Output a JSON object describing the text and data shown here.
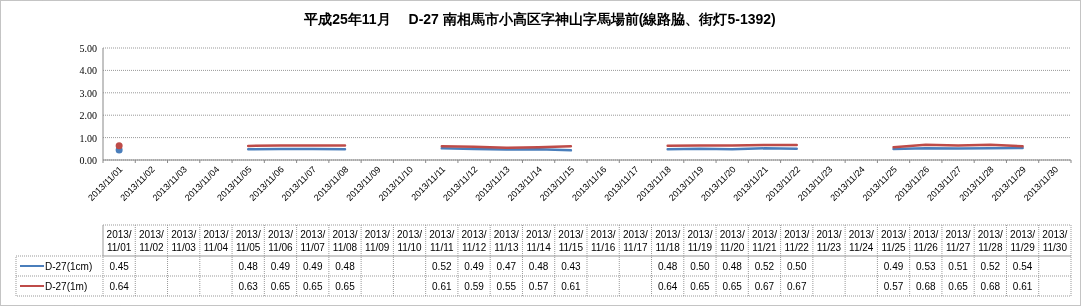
{
  "chart_data": {
    "type": "line",
    "title": "平成25年11月　 D-27 南相馬市小高区字神山字馬場前(線路脇、街灯5-1392)",
    "categories": [
      "2013/11/01",
      "2013/11/02",
      "2013/11/03",
      "2013/11/04",
      "2013/11/05",
      "2013/11/06",
      "2013/11/07",
      "2013/11/08",
      "2013/11/09",
      "2013/11/10",
      "2013/11/11",
      "2013/11/12",
      "2013/11/13",
      "2013/11/14",
      "2013/11/15",
      "2013/11/16",
      "2013/11/17",
      "2013/11/18",
      "2013/11/19",
      "2013/11/20",
      "2013/11/21",
      "2013/11/22",
      "2013/11/23",
      "2013/11/24",
      "2013/11/25",
      "2013/11/26",
      "2013/11/27",
      "2013/11/28",
      "2013/11/29",
      "2013/11/30"
    ],
    "series": [
      {
        "name": "D-27(1cm)",
        "color": "#4a7ebb",
        "values": [
          0.45,
          null,
          null,
          null,
          0.48,
          0.49,
          0.49,
          0.48,
          null,
          null,
          0.52,
          0.49,
          0.47,
          0.48,
          0.43,
          null,
          null,
          0.48,
          0.5,
          0.48,
          0.52,
          0.5,
          null,
          null,
          0.49,
          0.53,
          0.51,
          0.52,
          0.54,
          null
        ],
        "value_labels": [
          "0.45",
          null,
          null,
          null,
          "0.48",
          "0.49",
          "0.49",
          "0.48",
          null,
          null,
          "0.52",
          "0.49",
          "0.47",
          "0.48",
          "0.43",
          null,
          null,
          "0.48",
          "0.50",
          "0.48",
          "0.52",
          "0.50",
          null,
          null,
          "0.49",
          "0.53",
          "0.51",
          "0.52",
          "0.54",
          null
        ]
      },
      {
        "name": "D-27(1m)",
        "color": "#be4b48",
        "values": [
          0.64,
          null,
          null,
          null,
          0.63,
          0.65,
          0.65,
          0.65,
          null,
          null,
          0.61,
          0.59,
          0.55,
          0.57,
          0.61,
          null,
          null,
          0.64,
          0.65,
          0.65,
          0.67,
          0.67,
          null,
          null,
          0.57,
          0.68,
          0.65,
          0.68,
          0.61,
          null
        ],
        "value_labels": [
          "0.64",
          null,
          null,
          null,
          "0.63",
          "0.65",
          "0.65",
          "0.65",
          null,
          null,
          "0.61",
          "0.59",
          "0.55",
          "0.57",
          "0.61",
          null,
          null,
          "0.64",
          "0.65",
          "0.65",
          "0.67",
          "0.67",
          null,
          null,
          "0.57",
          "0.68",
          "0.65",
          "0.68",
          "0.61",
          null
        ]
      }
    ],
    "ylim": [
      0,
      5
    ],
    "yticks": [
      {
        "value": 0,
        "label": "0.00"
      },
      {
        "value": 1,
        "label": "1.00"
      },
      {
        "value": 2,
        "label": "2.00"
      },
      {
        "value": 3,
        "label": "3.00"
      },
      {
        "value": 4,
        "label": "4.00"
      },
      {
        "value": 5,
        "label": "5.00"
      }
    ],
    "grid": "y",
    "legend": "bottom",
    "marker": "none",
    "line_style": "solid"
  }
}
